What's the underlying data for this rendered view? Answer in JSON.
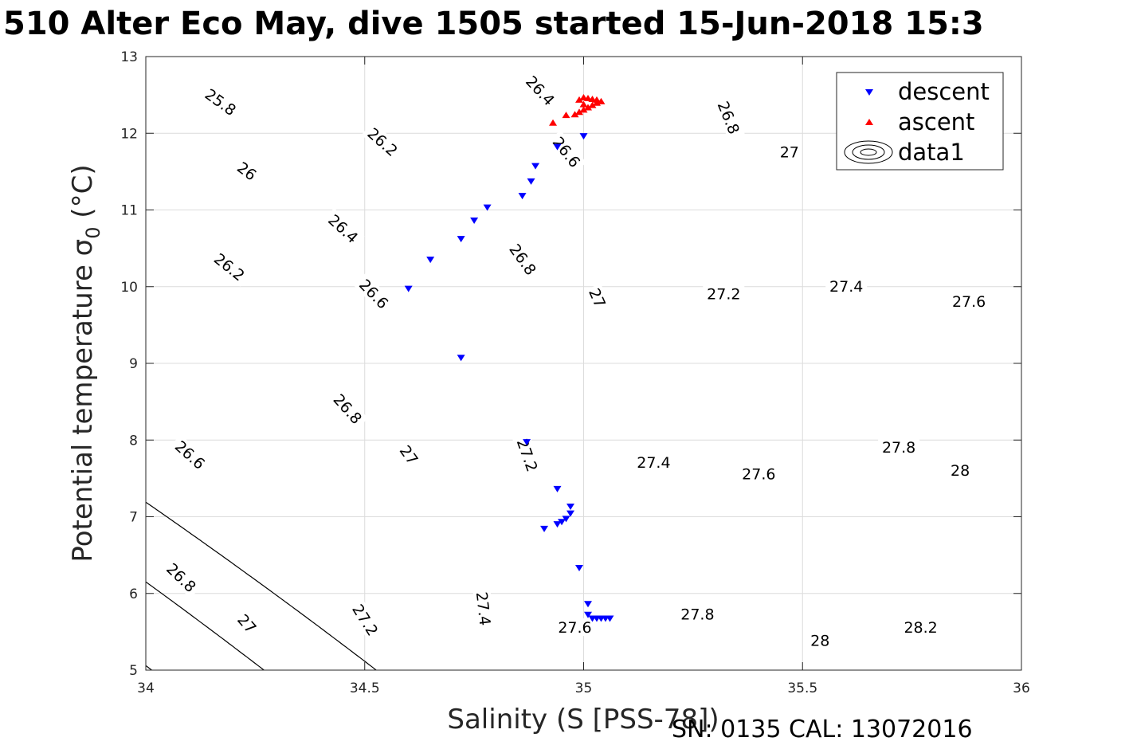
{
  "title": "510 Alter Eco May, dive 1505 started 15-Jun-2018 15:3",
  "footer": "SN: 0135  CAL: 13072016",
  "chart_data": {
    "type": "scatter",
    "title": "510 Alter Eco May, dive 1505 started 15-Jun-2018 15:3",
    "xlabel": "Salinity (S [PSS-78])",
    "ylabel": "Potential temperature σ 0 (°C)",
    "ylabel_main": "Potential temperature σ",
    "ylabel_sub": "0",
    "ylabel_unit": "(°C)",
    "xlim": [
      34,
      36
    ],
    "ylim": [
      5,
      13
    ],
    "xticks": [
      "34",
      "34.5",
      "35",
      "35.5",
      "36"
    ],
    "yticks": [
      "5",
      "6",
      "7",
      "8",
      "9",
      "10",
      "11",
      "12",
      "13"
    ],
    "grid": true,
    "legend_position": "top-right",
    "colors": {
      "descent": "#0000ff",
      "ascent": "#ff0000",
      "contour": "#000000",
      "grid": "#dcdcdc"
    },
    "series": [
      {
        "name": "descent",
        "marker": "triangle-down",
        "color": "#0000ff",
        "x": [
          35.0,
          34.94,
          34.89,
          34.88,
          34.86,
          34.78,
          34.75,
          34.72,
          34.65,
          34.6,
          34.72,
          34.87,
          34.94,
          34.97,
          34.97,
          34.96,
          34.95,
          34.94,
          34.91,
          34.99,
          35.01,
          35.01,
          35.02,
          35.03,
          35.04,
          35.05,
          35.06
        ],
        "y": [
          11.96,
          11.82,
          11.57,
          11.37,
          11.18,
          11.03,
          10.86,
          10.62,
          10.35,
          9.97,
          9.07,
          7.97,
          7.36,
          7.13,
          7.04,
          6.97,
          6.93,
          6.9,
          6.84,
          6.33,
          5.86,
          5.72,
          5.67,
          5.67,
          5.67,
          5.67,
          5.67
        ]
      },
      {
        "name": "ascent",
        "marker": "triangle-up",
        "color": "#ff0000",
        "x": [
          34.93,
          34.96,
          34.98,
          34.99,
          35.0,
          35.01,
          35.02,
          35.03,
          35.04,
          35.03,
          35.02,
          35.01,
          35.0,
          34.99,
          35.0
        ],
        "y": [
          12.14,
          12.24,
          12.25,
          12.28,
          12.31,
          12.34,
          12.37,
          12.4,
          12.42,
          12.44,
          12.45,
          12.46,
          12.47,
          12.44,
          12.38
        ]
      },
      {
        "name": "data1",
        "type": "contour",
        "levels": [
          {
            "v": 25.8,
            "label": "25.8"
          },
          {
            "v": 26.0,
            "label": "26"
          },
          {
            "v": 26.2,
            "label": "26.2"
          },
          {
            "v": 26.4,
            "label": "26.4"
          },
          {
            "v": 26.6,
            "label": "26.6"
          },
          {
            "v": 26.8,
            "label": "26.8"
          },
          {
            "v": 27.0,
            "label": "27"
          },
          {
            "v": 27.2,
            "label": "27.2"
          },
          {
            "v": 27.4,
            "label": "27.4"
          },
          {
            "v": 27.6,
            "label": "27.6"
          },
          {
            "v": 27.8,
            "label": "27.8"
          },
          {
            "v": 28.0,
            "label": "28"
          },
          {
            "v": 28.2,
            "label": "28.2"
          }
        ],
        "labels_shown": [
          {
            "text": "25.8",
            "s": 34.17,
            "t": 12.4
          },
          {
            "text": "26.2",
            "s": 34.54,
            "t": 11.88
          },
          {
            "text": "26.4",
            "s": 34.9,
            "t": 12.55
          },
          {
            "text": "26",
            "s": 34.23,
            "t": 11.5
          },
          {
            "text": "26.6",
            "s": 34.96,
            "t": 11.75
          },
          {
            "text": "26.8",
            "s": 35.33,
            "t": 12.2
          },
          {
            "text": "27",
            "s": 35.47,
            "t": 11.75
          },
          {
            "text": "26.4",
            "s": 34.45,
            "t": 10.75
          },
          {
            "text": "26.2",
            "s": 34.19,
            "t": 10.25
          },
          {
            "text": "26.8",
            "s": 34.86,
            "t": 10.35
          },
          {
            "text": "26.6",
            "s": 34.52,
            "t": 9.9
          },
          {
            "text": "27",
            "s": 35.03,
            "t": 9.85
          },
          {
            "text": "27.2",
            "s": 35.32,
            "t": 9.9
          },
          {
            "text": "27.4",
            "s": 35.6,
            "t": 10.0
          },
          {
            "text": "27.6",
            "s": 35.88,
            "t": 9.8
          },
          {
            "text": "26.8",
            "s": 34.46,
            "t": 8.4
          },
          {
            "text": "26.6",
            "s": 34.1,
            "t": 7.8
          },
          {
            "text": "27",
            "s": 34.6,
            "t": 7.8
          },
          {
            "text": "27.2",
            "s": 34.87,
            "t": 7.8
          },
          {
            "text": "27.4",
            "s": 35.16,
            "t": 7.7
          },
          {
            "text": "27.6",
            "s": 35.4,
            "t": 7.55
          },
          {
            "text": "27.8",
            "s": 35.72,
            "t": 7.9
          },
          {
            "text": "28",
            "s": 35.86,
            "t": 7.6
          },
          {
            "text": "26.8",
            "s": 34.08,
            "t": 6.2
          },
          {
            "text": "27",
            "s": 34.23,
            "t": 5.6
          },
          {
            "text": "27.2",
            "s": 34.5,
            "t": 5.65
          },
          {
            "text": "27.4",
            "s": 34.77,
            "t": 5.8
          },
          {
            "text": "27.6",
            "s": 34.98,
            "t": 5.55
          },
          {
            "text": "27.8",
            "s": 35.26,
            "t": 5.72
          },
          {
            "text": "28",
            "s": 35.54,
            "t": 5.38
          },
          {
            "text": "28.2",
            "s": 35.77,
            "t": 5.55
          }
        ]
      }
    ]
  }
}
